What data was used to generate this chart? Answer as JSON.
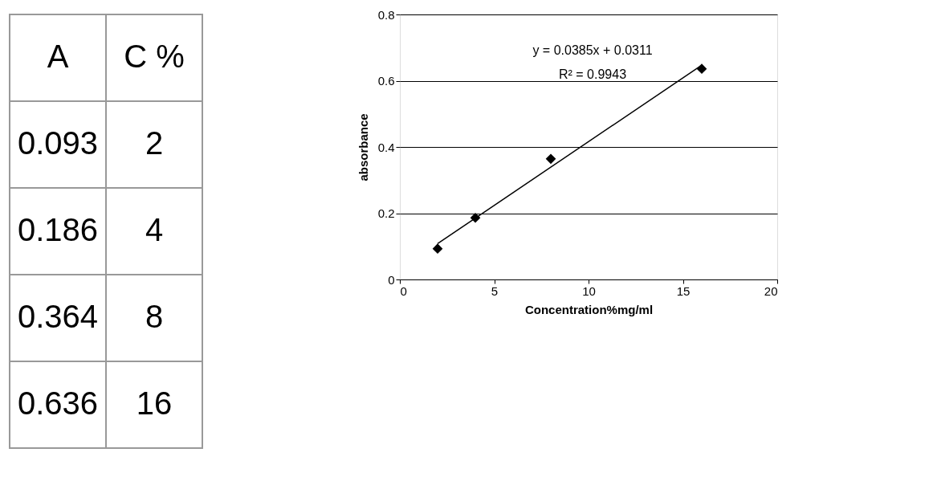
{
  "chart_data": [
    {
      "type": "other",
      "annotations": [
        "A",
        "C %",
        "0.093",
        "2",
        "0.186",
        "4",
        "0.364",
        "8",
        "0.636",
        "16"
      ]
    },
    {
      "type": "scatter",
      "xlabel": "Concentration%mg/ml",
      "ylabel": "absorbance",
      "xlim": [
        0,
        20
      ],
      "xticks": [
        0,
        5,
        10,
        15,
        20
      ],
      "ylim": [
        0,
        0.8
      ],
      "yticks": [
        {
          "value": 0,
          "label": "0"
        },
        0.2,
        0.4,
        0.6,
        0.8
      ],
      "grid": "y",
      "marker": "diamond",
      "annotations": [
        "y = 0.0385x + 0.0311",
        "R² = 0.9943"
      ],
      "series": [
        {
          "type": "scatter",
          "color": "#000000",
          "x": [
            2,
            4,
            8,
            16
          ],
          "values": [
            0.093,
            0.186,
            0.364,
            0.636
          ]
        },
        {
          "type": "line",
          "color": "#000000",
          "marker": "none",
          "x": [
            2,
            16
          ],
          "values": [
            0.108,
            0.647
          ]
        }
      ]
    }
  ]
}
